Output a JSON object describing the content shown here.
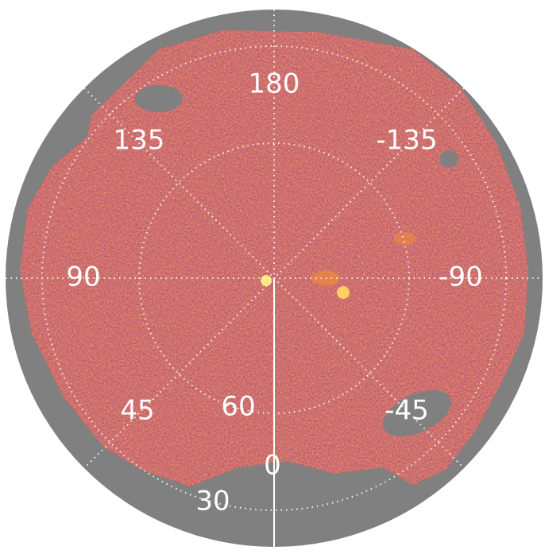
{
  "longitude_labels": [
    "180",
    "135",
    "-135",
    "90",
    "-90",
    "45",
    "-45",
    "0"
  ],
  "latitude_labels": [
    "60",
    "30"
  ]
}
